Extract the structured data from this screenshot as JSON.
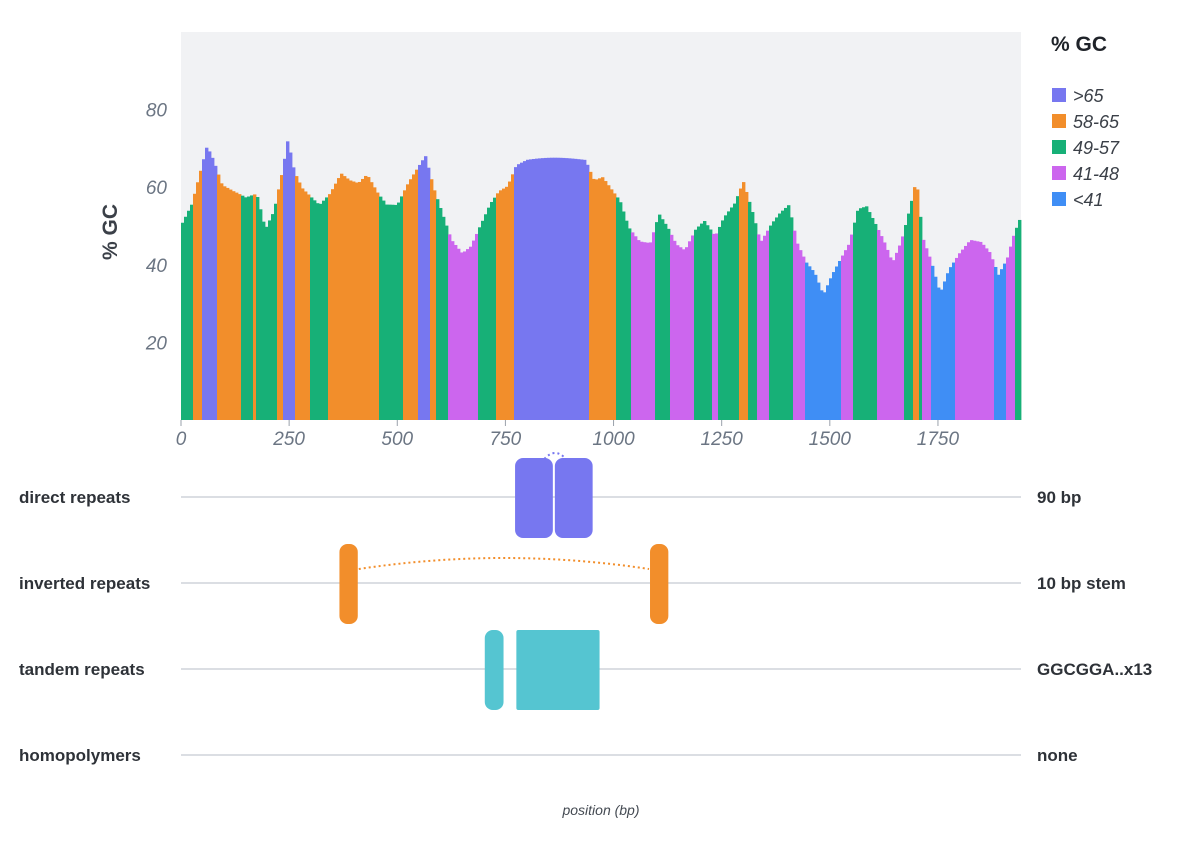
{
  "chart_data": {
    "type": "bar",
    "ylabel": "% GC",
    "xlabel": "position (bp)",
    "x_range": [
      0,
      1942
    ],
    "y_range": [
      0,
      100
    ],
    "x_ticks": [
      0,
      250,
      500,
      750,
      1000,
      1250,
      1500,
      1750
    ],
    "y_ticks": [
      20,
      40,
      60,
      80
    ],
    "legend": {
      "title": "% GC",
      "placement": "right",
      "items": [
        {
          "label": ">65",
          "color": "#7777f0"
        },
        {
          "label": "58-65",
          "color": "#f28e2b"
        },
        {
          "label": "49-57",
          "color": "#17b077"
        },
        {
          "label": "41-48",
          "color": "#cc66ee"
        },
        {
          "label": "<41",
          "color": "#3f8ef5"
        }
      ]
    },
    "gc_profile": [
      {
        "x": 0,
        "y": 51
      },
      {
        "x": 25,
        "y": 56
      },
      {
        "x": 45,
        "y": 64
      },
      {
        "x": 60,
        "y": 70
      },
      {
        "x": 75,
        "y": 66
      },
      {
        "x": 95,
        "y": 59
      },
      {
        "x": 120,
        "y": 57
      },
      {
        "x": 150,
        "y": 55
      },
      {
        "x": 175,
        "y": 56
      },
      {
        "x": 195,
        "y": 47
      },
      {
        "x": 215,
        "y": 52
      },
      {
        "x": 235,
        "y": 63
      },
      {
        "x": 247,
        "y": 71
      },
      {
        "x": 262,
        "y": 63
      },
      {
        "x": 280,
        "y": 59
      },
      {
        "x": 300,
        "y": 57
      },
      {
        "x": 320,
        "y": 55
      },
      {
        "x": 345,
        "y": 58
      },
      {
        "x": 370,
        "y": 63
      },
      {
        "x": 390,
        "y": 61
      },
      {
        "x": 410,
        "y": 60
      },
      {
        "x": 430,
        "y": 62
      },
      {
        "x": 455,
        "y": 57
      },
      {
        "x": 475,
        "y": 54
      },
      {
        "x": 500,
        "y": 54
      },
      {
        "x": 525,
        "y": 60
      },
      {
        "x": 545,
        "y": 64
      },
      {
        "x": 565,
        "y": 68
      },
      {
        "x": 585,
        "y": 60
      },
      {
        "x": 605,
        "y": 54
      },
      {
        "x": 625,
        "y": 48
      },
      {
        "x": 650,
        "y": 45
      },
      {
        "x": 670,
        "y": 47
      },
      {
        "x": 690,
        "y": 52
      },
      {
        "x": 715,
        "y": 58
      },
      {
        "x": 735,
        "y": 61
      },
      {
        "x": 755,
        "y": 62
      },
      {
        "x": 775,
        "y": 67
      },
      {
        "x": 800,
        "y": 68
      },
      {
        "x": 850,
        "y": 68
      },
      {
        "x": 900,
        "y": 68
      },
      {
        "x": 935,
        "y": 68
      },
      {
        "x": 955,
        "y": 63
      },
      {
        "x": 975,
        "y": 64
      },
      {
        "x": 995,
        "y": 61
      },
      {
        "x": 1015,
        "y": 58
      },
      {
        "x": 1035,
        "y": 51
      },
      {
        "x": 1060,
        "y": 47
      },
      {
        "x": 1085,
        "y": 46
      },
      {
        "x": 1105,
        "y": 53
      },
      {
        "x": 1125,
        "y": 49
      },
      {
        "x": 1145,
        "y": 44
      },
      {
        "x": 1165,
        "y": 42
      },
      {
        "x": 1190,
        "y": 47
      },
      {
        "x": 1210,
        "y": 49
      },
      {
        "x": 1235,
        "y": 45
      },
      {
        "x": 1255,
        "y": 50
      },
      {
        "x": 1280,
        "y": 54
      },
      {
        "x": 1300,
        "y": 60
      },
      {
        "x": 1320,
        "y": 53
      },
      {
        "x": 1340,
        "y": 45
      },
      {
        "x": 1365,
        "y": 50
      },
      {
        "x": 1385,
        "y": 53
      },
      {
        "x": 1405,
        "y": 55
      },
      {
        "x": 1425,
        "y": 45
      },
      {
        "x": 1445,
        "y": 40
      },
      {
        "x": 1465,
        "y": 37
      },
      {
        "x": 1485,
        "y": 31
      },
      {
        "x": 1505,
        "y": 36
      },
      {
        "x": 1525,
        "y": 40
      },
      {
        "x": 1545,
        "y": 44
      },
      {
        "x": 1565,
        "y": 53
      },
      {
        "x": 1585,
        "y": 54
      },
      {
        "x": 1605,
        "y": 50
      },
      {
        "x": 1625,
        "y": 46
      },
      {
        "x": 1645,
        "y": 41
      },
      {
        "x": 1665,
        "y": 47
      },
      {
        "x": 1685,
        "y": 56
      },
      {
        "x": 1700,
        "y": 64
      },
      {
        "x": 1715,
        "y": 49
      },
      {
        "x": 1735,
        "y": 43
      },
      {
        "x": 1755,
        "y": 35
      },
      {
        "x": 1775,
        "y": 41
      },
      {
        "x": 1800,
        "y": 45
      },
      {
        "x": 1825,
        "y": 48
      },
      {
        "x": 1850,
        "y": 47
      },
      {
        "x": 1870,
        "y": 44
      },
      {
        "x": 1890,
        "y": 38
      },
      {
        "x": 1910,
        "y": 42
      },
      {
        "x": 1925,
        "y": 48
      },
      {
        "x": 1942,
        "y": 53
      }
    ],
    "tracks": [
      {
        "label": "direct repeats",
        "summary": "90 bp",
        "features": [
          {
            "start": 770,
            "end": 862,
            "color": "#7777f0",
            "shape": "block"
          },
          {
            "start": 862,
            "end": 954,
            "color": "#7777f0",
            "shape": "block"
          }
        ],
        "link": {
          "from": 840,
          "to": 890,
          "color": "#7777f0"
        }
      },
      {
        "label": "inverted repeats",
        "summary": "10 bp stem",
        "features": [
          {
            "start": 364,
            "end": 411,
            "color": "#f28e2b",
            "shape": "block"
          },
          {
            "start": 1082,
            "end": 1129,
            "color": "#f28e2b",
            "shape": "block"
          }
        ],
        "link": {
          "from": 411,
          "to": 1082,
          "color": "#f28e2b"
        }
      },
      {
        "label": "tandem repeats",
        "summary": "GGCGGA..x13",
        "features": [
          {
            "start": 700,
            "end": 748,
            "color": "#55c5d1",
            "shape": "block"
          },
          {
            "start": 773,
            "end": 970,
            "color": "#55c5d1",
            "shape": "rect"
          }
        ]
      },
      {
        "label": "homopolymers",
        "summary": "none",
        "features": []
      }
    ]
  }
}
